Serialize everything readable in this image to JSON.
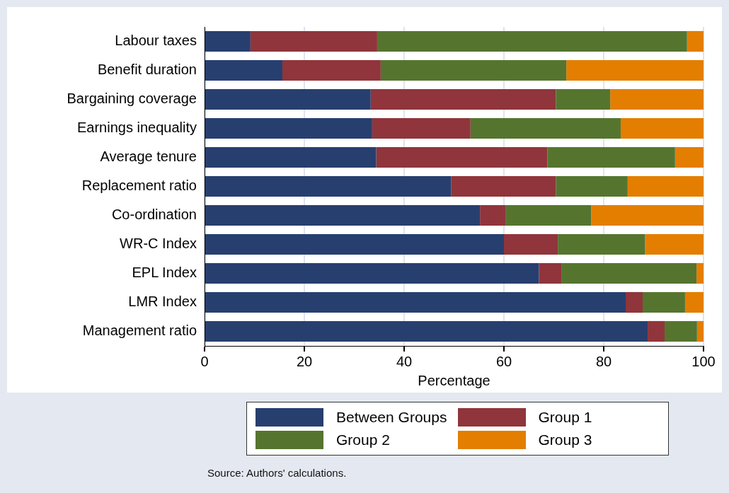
{
  "chart_data": {
    "type": "bar",
    "orientation": "horizontal",
    "stacked": true,
    "xlabel": "Percentage",
    "categories": [
      "Labour taxes",
      "Benefit duration",
      "Bargaining coverage",
      "Earnings inequality",
      "Average tenure",
      "Replacement ratio",
      "Co-ordination",
      "WR-C Index",
      "EPL Index",
      "LMR Index",
      "Management ratio"
    ],
    "series": [
      {
        "name": "Between Groups",
        "color": "#273f6f",
        "values": [
          9.2,
          15.6,
          33.3,
          33.6,
          34.4,
          49.4,
          55.2,
          60.0,
          67.0,
          84.4,
          88.8
        ]
      },
      {
        "name": "Group 1",
        "color": "#90353b",
        "values": [
          25.4,
          19.7,
          37.1,
          19.7,
          34.3,
          21.0,
          5.2,
          10.8,
          4.5,
          3.4,
          3.4
        ]
      },
      {
        "name": "Group 2",
        "color": "#55752f",
        "values": [
          62.1,
          37.2,
          10.9,
          30.1,
          25.6,
          14.4,
          17.1,
          17.5,
          27.1,
          8.5,
          6.5
        ]
      },
      {
        "name": "Group 3",
        "color": "#e37e00",
        "values": [
          3.3,
          27.5,
          18.7,
          16.6,
          5.7,
          15.2,
          22.5,
          11.7,
          1.4,
          3.7,
          1.3
        ]
      }
    ],
    "xlim": [
      0,
      100
    ],
    "xticks": [
      0,
      20,
      40,
      60,
      80,
      100
    ],
    "grid": "x",
    "legend": "bottom",
    "annotations": [
      "Source: Authors' calculations."
    ]
  }
}
